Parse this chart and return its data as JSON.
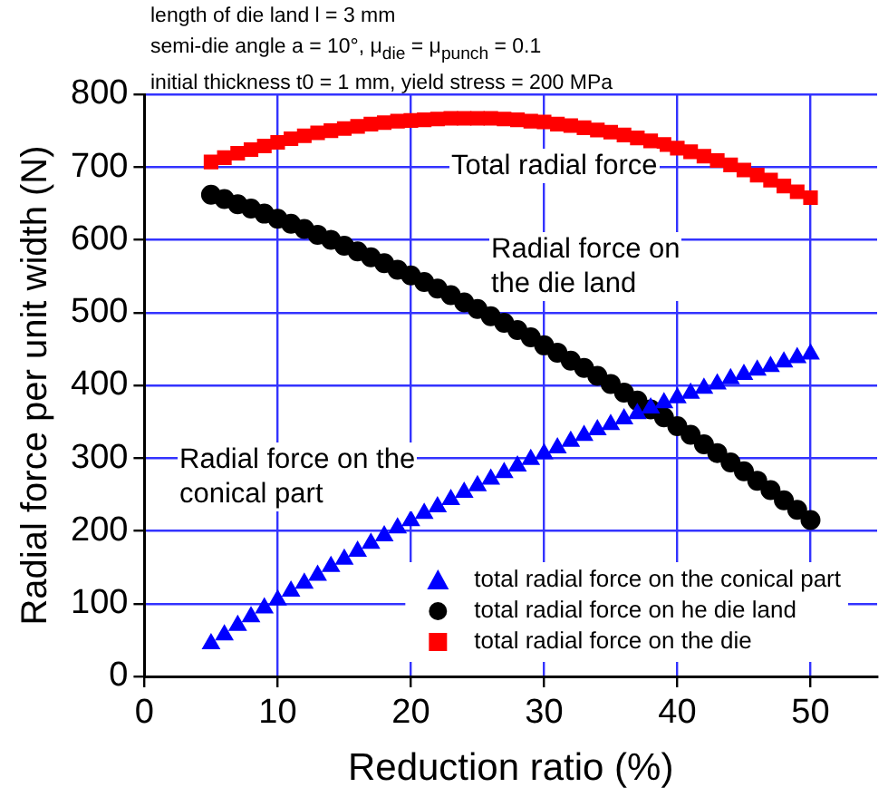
{
  "chart_data": {
    "type": "scatter",
    "xlabel": "Reduction ratio (%)",
    "ylabel": "Radial force per unit width (N)",
    "x": [
      5,
      6,
      7,
      8,
      9,
      10,
      11,
      12,
      13,
      14,
      15,
      16,
      17,
      18,
      19,
      20,
      21,
      22,
      23,
      24,
      25,
      26,
      27,
      28,
      29,
      30,
      31,
      32,
      33,
      34,
      35,
      36,
      37,
      38,
      39,
      40,
      41,
      42,
      43,
      44,
      45,
      46,
      47,
      48,
      49,
      50
    ],
    "series": [
      {
        "name": "total radial force on the conical part",
        "color": "#0000ff",
        "marker": "triangle",
        "values": [
          45,
          57,
          70,
          82,
          94,
          105,
          117,
          128,
          139,
          151,
          161,
          172,
          183,
          193,
          204,
          214,
          224,
          233,
          243,
          253,
          262,
          271,
          280,
          289,
          298,
          306,
          314,
          323,
          331,
          339,
          346,
          354,
          361,
          369,
          376,
          383,
          389,
          396,
          402,
          409,
          415,
          421,
          426,
          432,
          438,
          443
        ]
      },
      {
        "name": "total radial force on he die land",
        "color": "#000000",
        "marker": "circle",
        "values": [
          662,
          656,
          649,
          643,
          636,
          629,
          622,
          615,
          607,
          600,
          592,
          584,
          576,
          568,
          559,
          551,
          542,
          533,
          524,
          514,
          505,
          495,
          486,
          476,
          466,
          455,
          445,
          434,
          424,
          413,
          402,
          390,
          379,
          367,
          356,
          344,
          332,
          319,
          307,
          294,
          282,
          269,
          256,
          242,
          229,
          215
        ]
      },
      {
        "name": "total radial force on the die",
        "color": "#ff0000",
        "marker": "square",
        "values": [
          707,
          713,
          719,
          724,
          729,
          734,
          739,
          743,
          747,
          750,
          753,
          756,
          759,
          761,
          763,
          764,
          765,
          766,
          767,
          767,
          767,
          767,
          766,
          765,
          763,
          762,
          759,
          757,
          754,
          751,
          748,
          744,
          740,
          736,
          731,
          726,
          721,
          715,
          709,
          703,
          696,
          689,
          682,
          674,
          666,
          658
        ]
      }
    ],
    "xlim": [
      0,
      55
    ],
    "xticks": [
      0,
      10,
      20,
      30,
      40,
      50
    ],
    "ylim": [
      0,
      800
    ],
    "yticks": [
      0,
      100,
      200,
      300,
      400,
      500,
      600,
      700,
      800
    ],
    "grid": true,
    "legend": "bottom right",
    "annotations": [
      "length of die land l = 3 mm",
      "semi-die angle a = 10°, μ$_{die}$ = μ$_{punch}$ = 0.1",
      "initial thickness t0 = 1 mm, yield stress = 200 MPa",
      "Total radial force",
      "Radial force on\nthe die land",
      "Radial force on the\nconical part"
    ]
  }
}
